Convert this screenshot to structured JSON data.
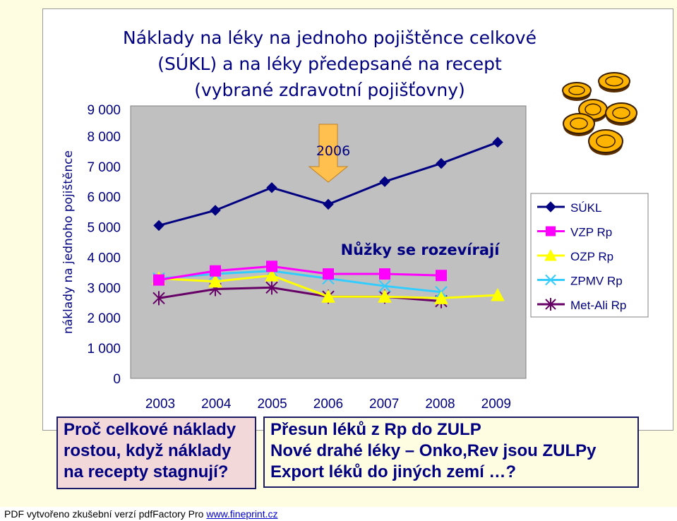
{
  "chart_data": {
    "type": "line",
    "title": [
      "Náklady na léky na jednoho pojištěnce celkové",
      "(SÚKL) a na léky předepsané na recept",
      "(vybrané zdravotní pojišťovny)"
    ],
    "ylabel": "náklady na jednoho pojištěnce",
    "categories": [
      "2003",
      "2004",
      "2005",
      "2006",
      "2007",
      "2008",
      "2009"
    ],
    "ylim": [
      0,
      9000
    ],
    "yticks": [
      0,
      1000,
      2000,
      3000,
      4000,
      5000,
      6000,
      7000,
      8000,
      9000
    ],
    "ytick_labels": [
      "0",
      "1 000",
      "2 000",
      "3 000",
      "4 000",
      "5 000",
      "6 000",
      "7 000",
      "8 000",
      "9 000"
    ],
    "grid": false,
    "legend_position": "right",
    "series": [
      {
        "name": "SÚKL",
        "color": "#000080",
        "marker": "diamond",
        "values": [
          5050,
          5550,
          6300,
          5750,
          6500,
          7100,
          7800
        ]
      },
      {
        "name": "VZP Rp",
        "color": "#ff00ff",
        "marker": "square",
        "values": [
          3250,
          3550,
          3700,
          3450,
          3450,
          3400,
          null
        ]
      },
      {
        "name": "OZP Rp",
        "color": "#ffff00",
        "marker": "triangle",
        "values": [
          3300,
          3200,
          3400,
          2700,
          2700,
          2650,
          2750
        ]
      },
      {
        "name": "ZPMV Rp",
        "color": "#33ccff",
        "marker": "x",
        "values": [
          3300,
          3450,
          3550,
          3300,
          3050,
          2850,
          null
        ]
      },
      {
        "name": "Met-Ali Rp",
        "color": "#660066",
        "marker": "star",
        "values": [
          2650,
          2950,
          3000,
          2700,
          2700,
          2550,
          null
        ]
      }
    ],
    "annotations": [
      {
        "text": "2006",
        "type": "arrow-down",
        "color": "#ffc04d",
        "x": "2006"
      },
      {
        "text": "Nůžky se rozevírají",
        "color": "#000080"
      }
    ]
  },
  "boxes": {
    "left": [
      "Proč celkové náklady",
      "rostou, když náklady",
      "na recepty stagnují?"
    ],
    "right": [
      "Přesun léků z Rp do ZULP",
      "Nové drahé léky – Onko,Rev jsou ZULPy",
      "Export léků do jiných zemí …?"
    ]
  },
  "footer": {
    "text": "PDF vytvořeno zkušební verzí pdfFactory Pro ",
    "link": "www.fineprint.cz"
  },
  "icons": [
    "coins-icon"
  ]
}
